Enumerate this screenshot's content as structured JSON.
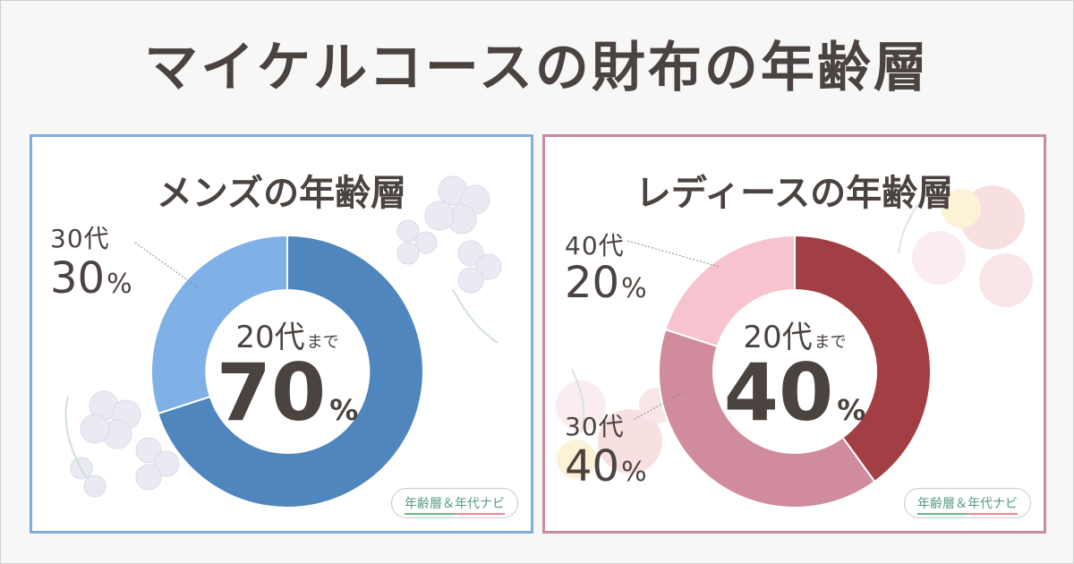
{
  "title": "マイケルコースの財布の年齢層",
  "panels": {
    "men": {
      "title": "メンズの年齢層",
      "center_label": "20代",
      "center_label_suffix": "まで",
      "center_value": "70",
      "center_unit": "%",
      "callouts": [
        {
          "label": "30代",
          "value": "30",
          "unit": "%"
        }
      ],
      "badge": "年齢層＆年代ナビ",
      "colors": {
        "border": "#7faee0",
        "main": "#4f86bd",
        "secondary": "#7fb0e6"
      }
    },
    "women": {
      "title": "レディースの年齢層",
      "center_label": "20代",
      "center_label_suffix": "まで",
      "center_value": "40",
      "center_unit": "%",
      "callouts": [
        {
          "label": "40代",
          "value": "20",
          "unit": "%"
        },
        {
          "label": "30代",
          "value": "40",
          "unit": "%"
        }
      ],
      "badge": "年齢層＆年代ナビ",
      "colors": {
        "border": "#c98c9c",
        "main": "#a23f44",
        "secondary": "#d08c9c",
        "tertiary": "#f7c3cf"
      }
    }
  },
  "chart_data": [
    {
      "type": "pie",
      "title": "メンズの年齢層",
      "categories": [
        "20代まで",
        "30代"
      ],
      "values": [
        70,
        30
      ],
      "colors": [
        "#4f86bd",
        "#7fb0e6"
      ]
    },
    {
      "type": "pie",
      "title": "レディースの年齢層",
      "categories": [
        "20代まで",
        "30代",
        "40代"
      ],
      "values": [
        40,
        40,
        20
      ],
      "colors": [
        "#a23f44",
        "#d08c9c",
        "#f7c3cf"
      ]
    }
  ]
}
